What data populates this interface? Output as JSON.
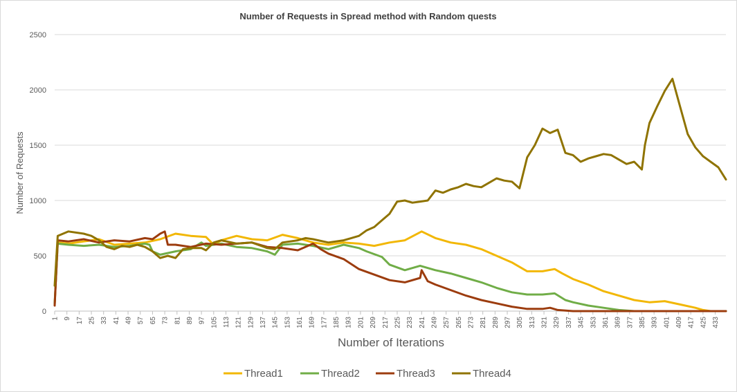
{
  "chart_data": {
    "type": "line",
    "title": "Number of Requests in Spread method with Random quests",
    "xlabel": "Number of Iterations",
    "ylabel": "Number of Requests",
    "ylim": [
      0,
      2500
    ],
    "yticks": [
      "0",
      "500",
      "1000",
      "1500",
      "2000",
      "2500"
    ],
    "xlim": [
      1,
      440
    ],
    "xticks_start": 1,
    "xticks_step": 8,
    "xticks_end": 433,
    "grid": true,
    "legend_position": "bottom",
    "series": [
      {
        "name": "Thread1",
        "color": "#f2b705",
        "points": [
          [
            1,
            60
          ],
          [
            3,
            620
          ],
          [
            10,
            610
          ],
          [
            20,
            630
          ],
          [
            30,
            650
          ],
          [
            40,
            600
          ],
          [
            50,
            610
          ],
          [
            60,
            620
          ],
          [
            70,
            650
          ],
          [
            80,
            700
          ],
          [
            90,
            680
          ],
          [
            100,
            670
          ],
          [
            105,
            600
          ],
          [
            110,
            640
          ],
          [
            120,
            680
          ],
          [
            130,
            650
          ],
          [
            140,
            640
          ],
          [
            150,
            690
          ],
          [
            160,
            660
          ],
          [
            170,
            620
          ],
          [
            180,
            600
          ],
          [
            190,
            620
          ],
          [
            200,
            610
          ],
          [
            210,
            590
          ],
          [
            220,
            620
          ],
          [
            230,
            640
          ],
          [
            241,
            720
          ],
          [
            250,
            660
          ],
          [
            260,
            620
          ],
          [
            270,
            600
          ],
          [
            280,
            560
          ],
          [
            290,
            500
          ],
          [
            300,
            440
          ],
          [
            310,
            360
          ],
          [
            320,
            360
          ],
          [
            328,
            380
          ],
          [
            333,
            340
          ],
          [
            340,
            290
          ],
          [
            350,
            240
          ],
          [
            360,
            180
          ],
          [
            370,
            140
          ],
          [
            380,
            100
          ],
          [
            390,
            80
          ],
          [
            400,
            90
          ],
          [
            410,
            60
          ],
          [
            420,
            30
          ],
          [
            425,
            10
          ],
          [
            430,
            0
          ],
          [
            440,
            0
          ]
        ]
      },
      {
        "name": "Thread2",
        "color": "#70ad47",
        "points": [
          [
            1,
            70
          ],
          [
            3,
            610
          ],
          [
            10,
            600
          ],
          [
            20,
            590
          ],
          [
            30,
            600
          ],
          [
            40,
            580
          ],
          [
            50,
            590
          ],
          [
            60,
            610
          ],
          [
            63,
            600
          ],
          [
            65,
            540
          ],
          [
            70,
            510
          ],
          [
            80,
            540
          ],
          [
            90,
            560
          ],
          [
            97,
            620
          ],
          [
            100,
            590
          ],
          [
            110,
            610
          ],
          [
            120,
            580
          ],
          [
            130,
            570
          ],
          [
            140,
            540
          ],
          [
            145,
            510
          ],
          [
            150,
            600
          ],
          [
            160,
            610
          ],
          [
            170,
            590
          ],
          [
            180,
            560
          ],
          [
            190,
            600
          ],
          [
            200,
            570
          ],
          [
            205,
            540
          ],
          [
            215,
            490
          ],
          [
            220,
            420
          ],
          [
            230,
            370
          ],
          [
            240,
            410
          ],
          [
            250,
            370
          ],
          [
            260,
            340
          ],
          [
            270,
            300
          ],
          [
            280,
            260
          ],
          [
            290,
            210
          ],
          [
            300,
            170
          ],
          [
            310,
            150
          ],
          [
            320,
            150
          ],
          [
            328,
            160
          ],
          [
            335,
            100
          ],
          [
            340,
            80
          ],
          [
            350,
            50
          ],
          [
            360,
            30
          ],
          [
            370,
            10
          ],
          [
            380,
            0
          ],
          [
            440,
            0
          ]
        ]
      },
      {
        "name": "Thread3",
        "color": "#9c3c0e",
        "points": [
          [
            1,
            50
          ],
          [
            3,
            640
          ],
          [
            10,
            630
          ],
          [
            20,
            650
          ],
          [
            30,
            620
          ],
          [
            40,
            640
          ],
          [
            50,
            630
          ],
          [
            60,
            660
          ],
          [
            65,
            650
          ],
          [
            70,
            700
          ],
          [
            73,
            720
          ],
          [
            75,
            600
          ],
          [
            80,
            600
          ],
          [
            90,
            580
          ],
          [
            100,
            610
          ],
          [
            110,
            600
          ],
          [
            120,
            610
          ],
          [
            130,
            620
          ],
          [
            140,
            580
          ],
          [
            150,
            570
          ],
          [
            160,
            550
          ],
          [
            170,
            610
          ],
          [
            175,
            560
          ],
          [
            180,
            520
          ],
          [
            190,
            470
          ],
          [
            200,
            380
          ],
          [
            210,
            330
          ],
          [
            220,
            280
          ],
          [
            230,
            260
          ],
          [
            240,
            300
          ],
          [
            241,
            370
          ],
          [
            245,
            270
          ],
          [
            250,
            240
          ],
          [
            260,
            190
          ],
          [
            270,
            140
          ],
          [
            280,
            100
          ],
          [
            290,
            70
          ],
          [
            300,
            40
          ],
          [
            310,
            20
          ],
          [
            320,
            20
          ],
          [
            325,
            30
          ],
          [
            330,
            10
          ],
          [
            340,
            0
          ],
          [
            440,
            0
          ]
        ]
      },
      {
        "name": "Thread4",
        "color": "#8f7300",
        "points": [
          [
            1,
            230
          ],
          [
            3,
            680
          ],
          [
            10,
            720
          ],
          [
            20,
            700
          ],
          [
            25,
            680
          ],
          [
            30,
            640
          ],
          [
            35,
            580
          ],
          [
            40,
            560
          ],
          [
            45,
            590
          ],
          [
            50,
            580
          ],
          [
            55,
            600
          ],
          [
            60,
            580
          ],
          [
            65,
            540
          ],
          [
            70,
            480
          ],
          [
            75,
            500
          ],
          [
            80,
            480
          ],
          [
            85,
            560
          ],
          [
            90,
            570
          ],
          [
            97,
            570
          ],
          [
            100,
            550
          ],
          [
            105,
            620
          ],
          [
            110,
            640
          ],
          [
            120,
            610
          ],
          [
            130,
            620
          ],
          [
            140,
            570
          ],
          [
            145,
            560
          ],
          [
            150,
            620
          ],
          [
            160,
            640
          ],
          [
            165,
            660
          ],
          [
            170,
            650
          ],
          [
            180,
            620
          ],
          [
            190,
            640
          ],
          [
            200,
            680
          ],
          [
            205,
            730
          ],
          [
            210,
            760
          ],
          [
            215,
            820
          ],
          [
            220,
            880
          ],
          [
            225,
            990
          ],
          [
            230,
            1000
          ],
          [
            235,
            980
          ],
          [
            240,
            990
          ],
          [
            245,
            1000
          ],
          [
            250,
            1090
          ],
          [
            255,
            1070
          ],
          [
            260,
            1100
          ],
          [
            265,
            1120
          ],
          [
            270,
            1150
          ],
          [
            275,
            1130
          ],
          [
            280,
            1120
          ],
          [
            285,
            1160
          ],
          [
            290,
            1200
          ],
          [
            295,
            1180
          ],
          [
            300,
            1170
          ],
          [
            305,
            1110
          ],
          [
            310,
            1390
          ],
          [
            315,
            1500
          ],
          [
            320,
            1650
          ],
          [
            325,
            1610
          ],
          [
            330,
            1640
          ],
          [
            335,
            1430
          ],
          [
            340,
            1410
          ],
          [
            345,
            1350
          ],
          [
            350,
            1380
          ],
          [
            355,
            1400
          ],
          [
            360,
            1420
          ],
          [
            365,
            1410
          ],
          [
            370,
            1370
          ],
          [
            375,
            1330
          ],
          [
            380,
            1350
          ],
          [
            385,
            1280
          ],
          [
            387,
            1500
          ],
          [
            390,
            1700
          ],
          [
            395,
            1850
          ],
          [
            400,
            1990
          ],
          [
            405,
            2100
          ],
          [
            410,
            1850
          ],
          [
            415,
            1600
          ],
          [
            420,
            1480
          ],
          [
            425,
            1400
          ],
          [
            430,
            1350
          ],
          [
            435,
            1300
          ],
          [
            440,
            1190
          ]
        ]
      }
    ]
  }
}
